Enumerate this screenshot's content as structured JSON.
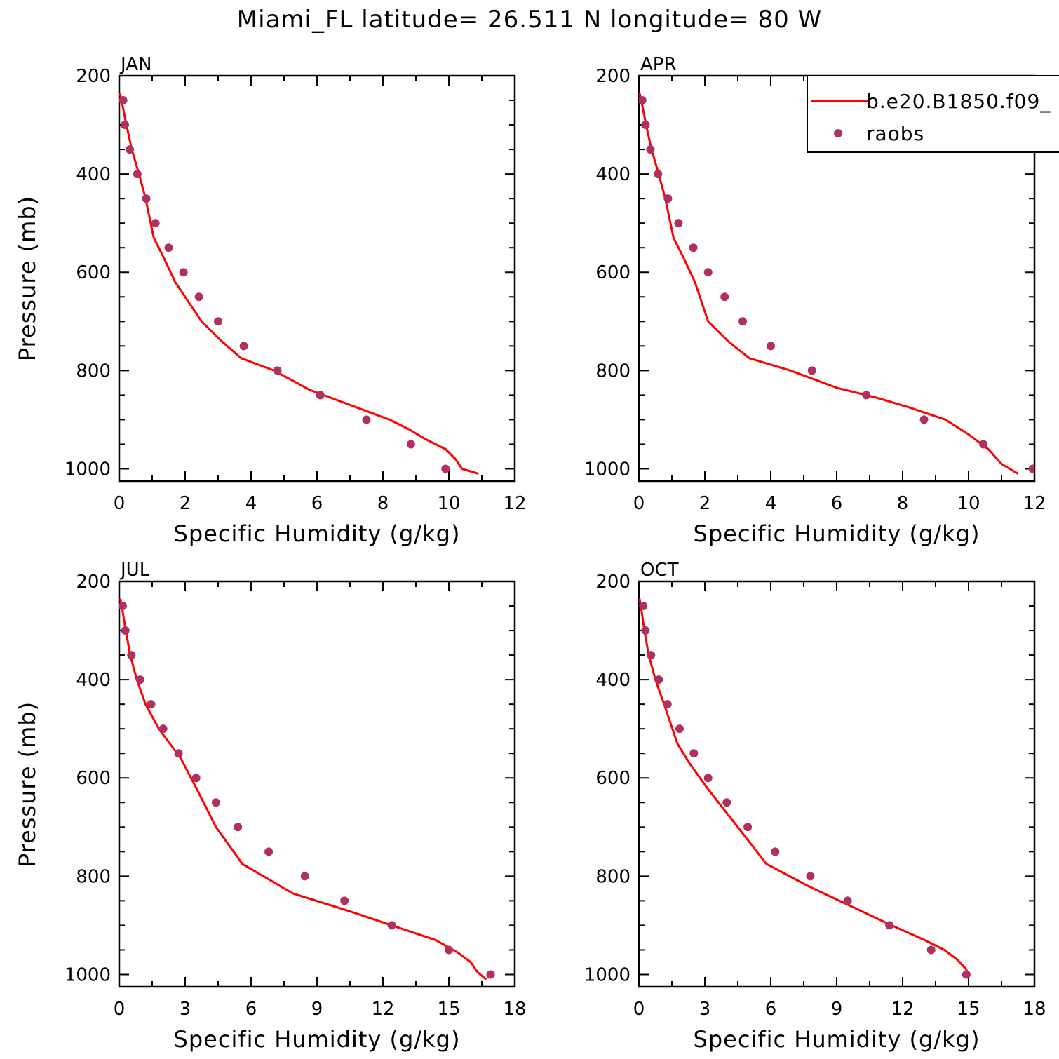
{
  "title": "Miami_FL  latitude= 26.511 N longitude= 80 W",
  "colors": {
    "model_line": "#ff0000",
    "raobs_marker": "#b03060",
    "axes": "#000000"
  },
  "chart_data": [
    {
      "type": "line",
      "panel_title": "JAN",
      "xlabel": "Specific Humidity (g/kg)",
      "ylabel": "Pressure (mb)",
      "xlim": [
        0,
        12
      ],
      "ylim": [
        1025,
        200
      ],
      "y_inverted": true,
      "xticks": [
        0,
        2,
        4,
        6,
        8,
        10,
        12
      ],
      "yticks": [
        200,
        400,
        600,
        800,
        1000
      ],
      "series": [
        {
          "kind": "line",
          "x": [
            0.02,
            0.1,
            0.22,
            0.38,
            0.6,
            0.8,
            1.05,
            1.35,
            1.7,
            2.1,
            2.5,
            3.1,
            3.7,
            4.7,
            5.8,
            7.0,
            8.2,
            8.8,
            9.3,
            9.9,
            10.2,
            10.4,
            10.9
          ],
          "y": [
            235,
            260,
            300,
            350,
            400,
            450,
            530,
            570,
            620,
            660,
            700,
            740,
            775,
            800,
            840,
            870,
            900,
            920,
            940,
            960,
            980,
            1000,
            1010
          ]
        },
        {
          "name": "raobs",
          "kind": "marker",
          "x": [
            0.12,
            0.17,
            0.32,
            0.55,
            0.82,
            1.1,
            1.5,
            1.95,
            2.42,
            3.0,
            3.78,
            4.8,
            6.1,
            7.5,
            8.85,
            9.9
          ],
          "y": [
            250,
            300,
            350,
            400,
            450,
            500,
            550,
            600,
            650,
            700,
            750,
            800,
            850,
            900,
            950,
            1000
          ]
        }
      ]
    },
    {
      "type": "line",
      "panel_title": "APR",
      "xlabel": "Specific Humidity (g/kg)",
      "ylabel": "",
      "xlim": [
        0,
        12
      ],
      "ylim": [
        1025,
        200
      ],
      "y_inverted": true,
      "xticks": [
        0,
        2,
        4,
        6,
        8,
        10,
        12
      ],
      "yticks": [
        200,
        400,
        600,
        800,
        1000
      ],
      "legend": {
        "position": "top-right",
        "entries": [
          {
            "label": "b.e20.B1850.f09_",
            "kind": "line"
          },
          {
            "label": "raobs",
            "kind": "marker"
          }
        ]
      },
      "series": [
        {
          "kind": "line",
          "x": [
            0.02,
            0.1,
            0.22,
            0.38,
            0.6,
            0.8,
            1.05,
            1.35,
            1.7,
            2.1,
            2.7,
            3.35,
            4.6,
            6.0,
            7.2,
            8.2,
            9.3,
            10.0,
            10.6,
            11.0,
            11.5
          ],
          "y": [
            235,
            260,
            300,
            350,
            400,
            450,
            530,
            570,
            620,
            700,
            740,
            775,
            800,
            835,
            855,
            875,
            900,
            930,
            960,
            990,
            1010
          ]
        },
        {
          "name": "raobs",
          "kind": "marker",
          "x": [
            0.1,
            0.2,
            0.35,
            0.58,
            0.88,
            1.2,
            1.65,
            2.1,
            2.6,
            3.15,
            4.0,
            5.25,
            6.9,
            8.65,
            10.45,
            11.95
          ],
          "y": [
            250,
            300,
            350,
            400,
            450,
            500,
            550,
            600,
            650,
            700,
            750,
            800,
            850,
            900,
            950,
            1000
          ]
        }
      ]
    },
    {
      "type": "line",
      "panel_title": "JUL",
      "xlabel": "Specific Humidity (g/kg)",
      "ylabel": "Pressure (mb)",
      "xlim": [
        0,
        18
      ],
      "ylim": [
        1025,
        200
      ],
      "y_inverted": true,
      "xticks": [
        0,
        3,
        6,
        9,
        12,
        15,
        18
      ],
      "yticks": [
        200,
        400,
        600,
        800,
        1000
      ],
      "series": [
        {
          "kind": "line",
          "x": [
            0.05,
            0.15,
            0.3,
            0.5,
            0.8,
            1.2,
            1.8,
            2.3,
            2.8,
            3.5,
            4.4,
            5.6,
            7.9,
            10.4,
            12.4,
            14.4,
            15.4,
            16.0,
            16.3,
            16.7
          ],
          "y": [
            235,
            260,
            300,
            350,
            400,
            450,
            500,
            530,
            560,
            620,
            700,
            775,
            835,
            870,
            900,
            930,
            955,
            975,
            995,
            1010
          ]
        },
        {
          "name": "raobs",
          "kind": "marker",
          "x": [
            0.16,
            0.28,
            0.55,
            0.95,
            1.45,
            2.0,
            2.7,
            3.5,
            4.4,
            5.4,
            6.8,
            8.45,
            10.25,
            12.4,
            15.0,
            16.9
          ],
          "y": [
            250,
            300,
            350,
            400,
            450,
            500,
            550,
            600,
            650,
            700,
            750,
            800,
            850,
            900,
            950,
            1000
          ]
        }
      ]
    },
    {
      "type": "line",
      "panel_title": "OCT",
      "xlabel": "Specific Humidity (g/kg)",
      "ylabel": "",
      "xlim": [
        0,
        18
      ],
      "ylim": [
        1025,
        200
      ],
      "y_inverted": true,
      "xticks": [
        0,
        3,
        6,
        9,
        12,
        15,
        18
      ],
      "yticks": [
        200,
        400,
        600,
        800,
        1000
      ],
      "series": [
        {
          "kind": "line",
          "x": [
            0.03,
            0.12,
            0.25,
            0.45,
            0.75,
            1.15,
            1.75,
            2.3,
            3.1,
            4.5,
            5.8,
            7.7,
            9.6,
            11.5,
            13.0,
            13.9,
            14.5,
            14.9,
            15.0
          ],
          "y": [
            235,
            260,
            300,
            350,
            400,
            450,
            530,
            570,
            620,
            700,
            775,
            820,
            860,
            900,
            930,
            950,
            970,
            990,
            1005
          ]
        },
        {
          "name": "raobs",
          "kind": "marker",
          "x": [
            0.2,
            0.3,
            0.55,
            0.9,
            1.3,
            1.85,
            2.5,
            3.15,
            4.0,
            4.95,
            6.2,
            7.8,
            9.5,
            11.4,
            13.3,
            14.9
          ],
          "y": [
            250,
            300,
            350,
            400,
            450,
            500,
            550,
            600,
            650,
            700,
            750,
            800,
            850,
            900,
            950,
            1000
          ]
        }
      ]
    }
  ]
}
